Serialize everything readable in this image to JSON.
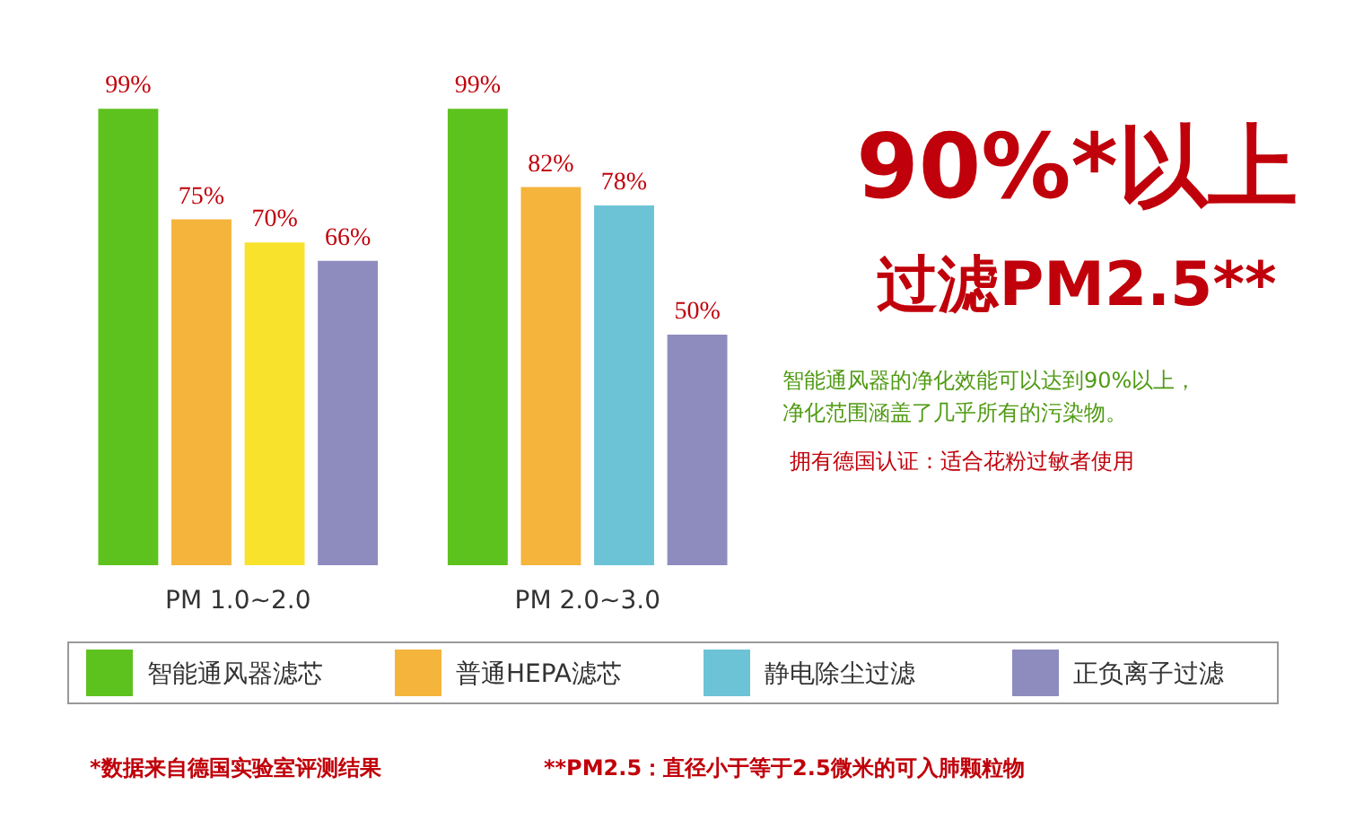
{
  "chart_data": {
    "type": "bar",
    "categories": [
      "PM 1.0~2.0",
      "PM 2.0~3.0"
    ],
    "ylim": [
      0,
      100
    ],
    "tick_labels": "x",
    "grid": false,
    "legend": "bottom",
    "series": [
      {
        "name": "智能通风器滤芯",
        "color": "#5dc21e",
        "values": [
          99,
          99
        ],
        "value_labels": [
          "99%",
          "99%"
        ]
      },
      {
        "name": "普通HEPA滤芯",
        "color": "#f5b43c",
        "values": [
          75,
          82
        ],
        "value_labels": [
          "75%",
          "82%"
        ]
      },
      {
        "name": "静电除尘过滤",
        "color": "#6cc3d6",
        "colors": [
          "#f8e22c",
          "#6cc3d6"
        ],
        "values": [
          70,
          78
        ],
        "value_labels": [
          "70%",
          "78%"
        ]
      },
      {
        "name": "正负离子过滤",
        "color": "#8e8cbf",
        "values": [
          66,
          50
        ],
        "value_labels": [
          "66%",
          "50%"
        ]
      }
    ],
    "annotations": [
      "90%*以上",
      "过滤PM2.5**",
      "智能通风器的净化效能可以达到90%以上，",
      "净化范围涵盖了几乎所有的污染物。",
      "拥有德国认证：适合花粉过敏者使用",
      "*数据来自德国实验室评测结果",
      "**PM2.5：直径小于等于2.5微米的可入肺颗粒物"
    ]
  }
}
